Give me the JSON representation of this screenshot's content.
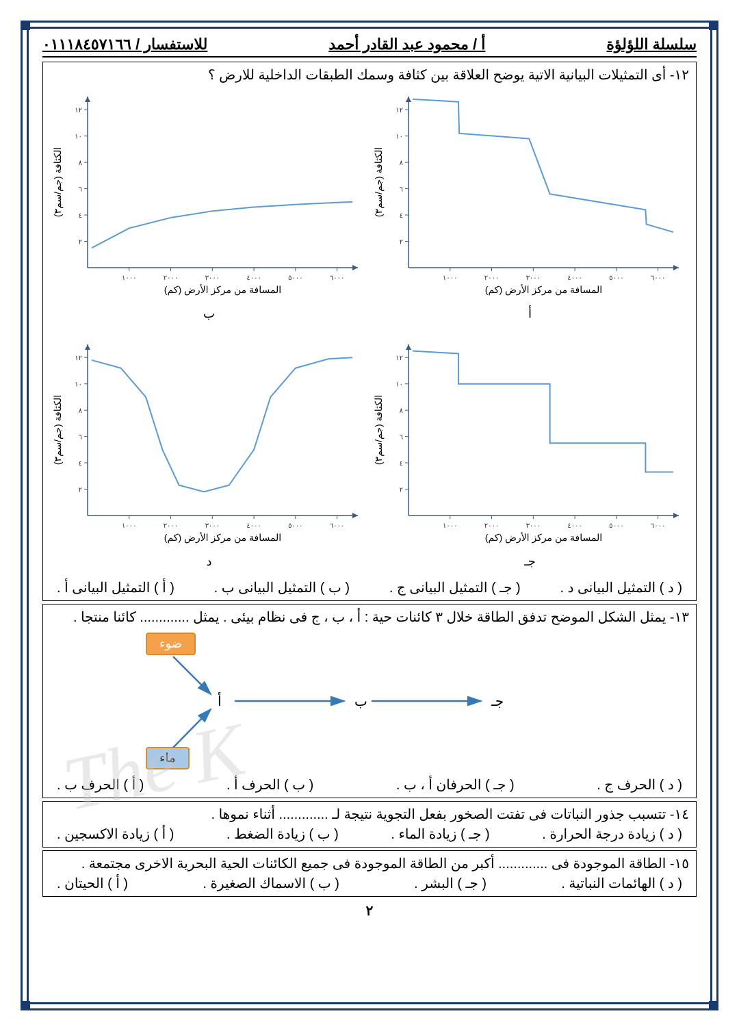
{
  "header": {
    "series": "سلسلة اللؤلؤة",
    "author": "أ / محمود عبد القادر أحمد",
    "contact": "للاستفسار / ٠١١١٨٤٥٧١٦٦"
  },
  "q12": {
    "text": "١٢- أى التمثيلات البيانية الاتية يوضح العلاقة بين كثافة وسمك الطبقات الداخلية للارض ؟",
    "charts": {
      "xlabel": "المسافة من مركز الأرض (كم)",
      "ylabel": "الكثافة (جم/سم٣)",
      "xlim": [
        0,
        6500
      ],
      "ylim": [
        0,
        13
      ],
      "xticks": [
        1000,
        2000,
        3000,
        4000,
        5000,
        6000
      ],
      "xticklabels": [
        "١٠٠٠",
        "٢٠٠٠",
        "٣٠٠٠",
        "٤٠٠٠",
        "٥٠٠٠",
        "٦٠٠٠"
      ],
      "yticks": [
        2,
        4,
        6,
        8,
        10,
        12
      ],
      "yticklabels": [
        "٢",
        "٤",
        "٦",
        "٨",
        "١٠",
        "١٢"
      ],
      "line_color": "#5b9bd5",
      "axis_color": "#3a5a8a",
      "label_fontsize": 12,
      "tick_fontsize": 10,
      "letters": {
        "a": "أ",
        "b": "ب",
        "c": "جـ",
        "d": "د"
      },
      "chart_a": {
        "points": [
          [
            100,
            12.8
          ],
          [
            1200,
            12.6
          ],
          [
            1220,
            10.2
          ],
          [
            2900,
            9.8
          ],
          [
            3400,
            5.6
          ],
          [
            5700,
            4.4
          ],
          [
            5720,
            3.3
          ],
          [
            6370,
            2.7
          ]
        ]
      },
      "chart_b": {
        "points": [
          [
            100,
            1.5
          ],
          [
            1000,
            3.0
          ],
          [
            2000,
            3.8
          ],
          [
            3000,
            4.3
          ],
          [
            4000,
            4.6
          ],
          [
            5000,
            4.8
          ],
          [
            6000,
            4.95
          ],
          [
            6370,
            5.0
          ]
        ]
      },
      "chart_c": {
        "points": [
          [
            100,
            12.5
          ],
          [
            1200,
            12.3
          ],
          [
            1200,
            10.0
          ],
          [
            3400,
            10.0
          ],
          [
            3400,
            5.5
          ],
          [
            5700,
            5.5
          ],
          [
            5700,
            3.3
          ],
          [
            6370,
            3.3
          ]
        ]
      },
      "chart_d": {
        "points": [
          [
            100,
            11.8
          ],
          [
            800,
            11.2
          ],
          [
            1400,
            9.0
          ],
          [
            1800,
            5.0
          ],
          [
            2200,
            2.3
          ],
          [
            2800,
            1.8
          ],
          [
            3400,
            2.3
          ],
          [
            4000,
            5.0
          ],
          [
            4400,
            9.0
          ],
          [
            5000,
            11.2
          ],
          [
            5800,
            11.9
          ],
          [
            6370,
            12.0
          ]
        ]
      }
    },
    "options": {
      "a": "( أ ) التمثيل البيانى أ .",
      "b": "( ب ) التمثيل البيانى ب .",
      "c": "( جـ ) التمثيل البيانى ج .",
      "d": "( د ) التمثيل البيانى د ."
    }
  },
  "q13": {
    "text": "١٣- يمثل الشكل الموضح تدفق الطاقة خلال ٣ كائنات حية : أ ، ب ، ج فى نظام بيئى . يمثل ............. كائنا منتجا .",
    "diagram": {
      "light": "ضوء",
      "water": "ماء",
      "nodes": [
        "أ",
        "ب",
        "جـ"
      ],
      "arrow_color": "#357ab7",
      "box_border": "#d98b2e",
      "light_bg": "#f5a04a",
      "water_bg": "#a8c8e8"
    },
    "options": {
      "a": "( أ ) الحرف ب .",
      "b": "( ب ) الحرف أ .",
      "c": "( جـ ) الحرفان أ ، ب .",
      "d": "( د ) الحرف ج ."
    }
  },
  "q14": {
    "text": "١٤- تتسبب جذور النباتات فى تفتت الصخور بفعل التجوية نتيجة لـ ............. أثناء نموها .",
    "options": {
      "a": "( أ ) زيادة الاكسجين .",
      "b": "( ب ) زيادة الضغط .",
      "c": "( جـ ) زيادة الماء .",
      "d": "( د ) زيادة درجة الحرارة ."
    }
  },
  "q15": {
    "text": "١٥- الطاقة الموجودة فى ............. أكبر من الطاقة الموجودة فى جميع الكائنات الحية البحرية الاخرى مجتمعة .",
    "options": {
      "a": "( أ ) الحيتان .",
      "b": "( ب ) الاسماك الصغيرة .",
      "c": "( جـ ) البشر .",
      "d": "( د ) الهائمات النباتية ."
    }
  },
  "page_number": "٢",
  "watermark": "The K"
}
